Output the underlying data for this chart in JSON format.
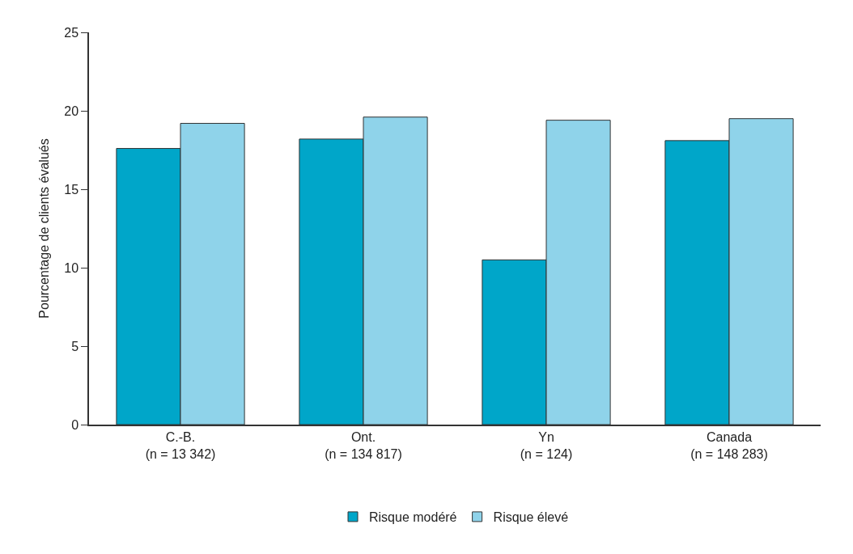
{
  "chart_data": {
    "type": "bar",
    "ylabel": "Pourcentage de clients évalués",
    "categories": [
      "C.-B.\n(n = 13 342)",
      "Ont.\n(n = 134 817)",
      "Yn\n(n = 124)",
      "Canada\n(n = 148 283)"
    ],
    "series": [
      {
        "name": "Risque modéré",
        "color": "#00a6c9",
        "values": [
          17.6,
          18.2,
          10.5,
          18.1
        ]
      },
      {
        "name": "Risque élevé",
        "color": "#8fd3ea",
        "values": [
          19.2,
          19.6,
          19.4,
          19.5
        ]
      }
    ],
    "ylim": [
      0,
      25
    ],
    "yticks": [
      0,
      5,
      10,
      15,
      20,
      25
    ],
    "grid": false,
    "legend": "bottom"
  }
}
